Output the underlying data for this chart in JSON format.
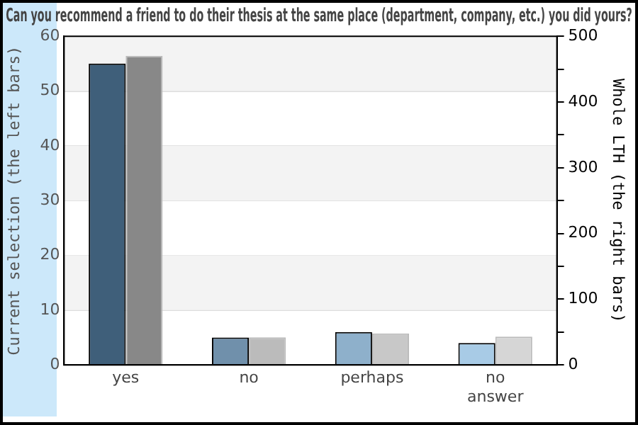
{
  "chart_data": {
    "type": "bar",
    "title": "Can you recommend a friend to do their thesis at the same place (department, company, etc.) you did yours?",
    "ylabel": "Current selection (the left bars)",
    "y2label": "Whole LTH (the right bars)",
    "categories": [
      "yes",
      "no",
      "perhaps",
      "no answer"
    ],
    "series": [
      {
        "colors": [
          "#3f5f7a",
          "#7090ab",
          "#8eb0cb",
          "#a8cbe6"
        ],
        "values": [
          55,
          5,
          6,
          4
        ]
      },
      {
        "colors": [
          "#888888",
          "#bbbbbb",
          "#c8c8c8",
          "#d6d6d6"
        ],
        "values": [
          470,
          42,
          48,
          43
        ],
        "axis": "y2"
      }
    ],
    "ylim": [
      0,
      60
    ],
    "yticks": [
      0,
      10,
      20,
      30,
      40,
      50,
      60
    ],
    "y2lim": [
      0,
      500
    ],
    "y2ticks": [
      0,
      {
        "value": 50,
        "label": null
      },
      100,
      {
        "value": 150,
        "label": null
      },
      200,
      {
        "value": 250,
        "label": null
      },
      300,
      {
        "value": 350,
        "label": null
      },
      400,
      {
        "value": 450,
        "label": null
      },
      500
    ],
    "grid": "y",
    "legend": false
  }
}
